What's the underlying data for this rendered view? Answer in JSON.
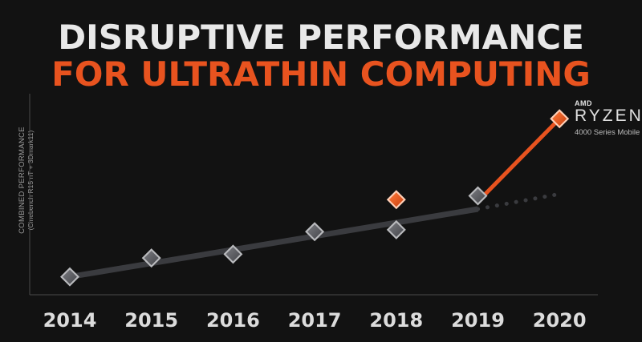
{
  "header": {
    "title_line1": "DISRUPTIVE PERFORMANCE",
    "title_line2": "FOR ULTRATHIN COMPUTING"
  },
  "brand": {
    "amd": "AMD",
    "product": "RYZEN",
    "series": "4000 Series Mobile"
  },
  "colors": {
    "accent": "#e8531f",
    "trend": "#3a3b3f",
    "marker_gray": "#5a5b60"
  },
  "chart_data": {
    "type": "line",
    "title": "DISRUPTIVE PERFORMANCE FOR ULTRATHIN COMPUTING",
    "ylabel_line1": "COMBINED PERFORMANCE",
    "ylabel_line2": "(Cinebench R15 nT + 3Dmark11)",
    "categories": [
      "2014",
      "2015",
      "2016",
      "2017",
      "2018",
      "2019",
      "2020"
    ],
    "ylim": [
      0,
      100
    ],
    "grid": false,
    "series": [
      {
        "name": "",
        "kind": "trend",
        "points": [
          {
            "x": "2014",
            "y": 4
          },
          {
            "x": "2019",
            "y": 40
          }
        ]
      },
      {
        "name": "",
        "kind": "projection",
        "points": [
          {
            "x": "2019",
            "y": 40
          },
          {
            "x": "2020",
            "y": 48
          }
        ]
      },
      {
        "name": "",
        "kind": "gray-markers",
        "points": [
          {
            "x": "2014",
            "y": 4
          },
          {
            "x": "2015",
            "y": 14
          },
          {
            "x": "2016",
            "y": 16
          },
          {
            "x": "2017",
            "y": 28
          },
          {
            "x": "2018",
            "y": 29
          },
          {
            "x": "2019",
            "y": 47
          }
        ]
      },
      {
        "name": "",
        "kind": "orange-markers",
        "points": [
          {
            "x": "2018",
            "y": 45
          },
          {
            "x": "2020",
            "y": 88
          }
        ]
      },
      {
        "name": "AMD RYZEN 4000 Series Mobile",
        "kind": "highlight",
        "points": [
          {
            "x": "2019",
            "y": 44
          },
          {
            "x": "2020",
            "y": 88
          }
        ]
      }
    ]
  }
}
